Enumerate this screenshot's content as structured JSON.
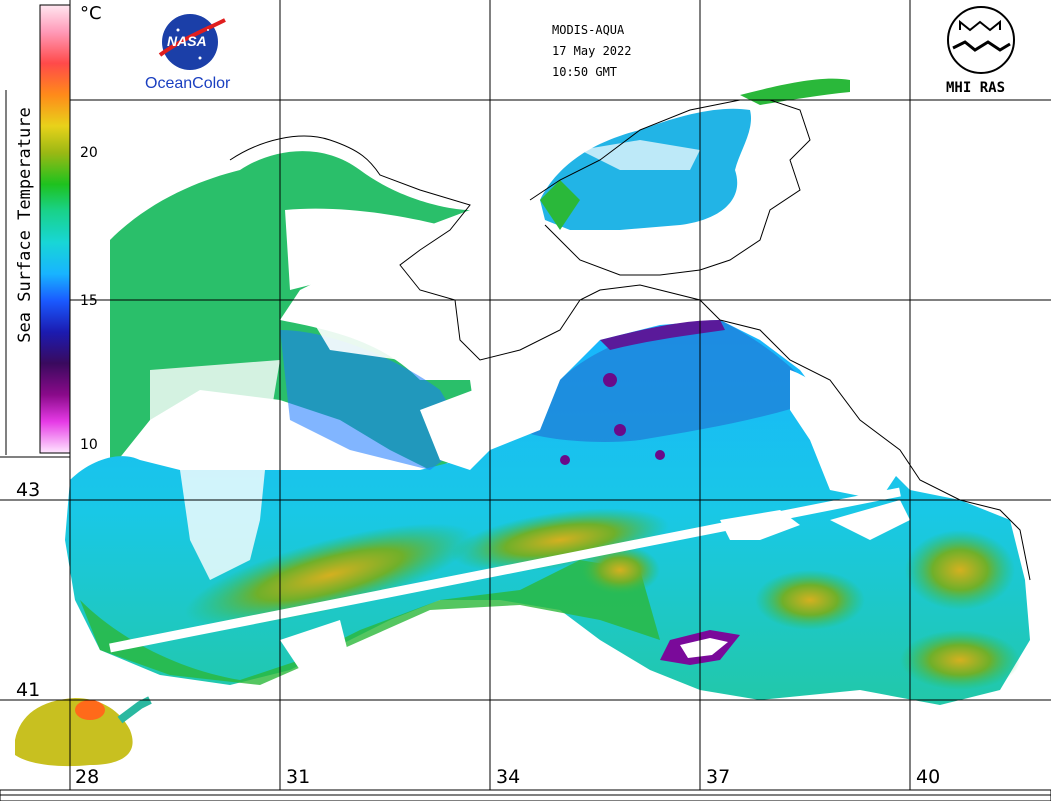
{
  "colorbar": {
    "unit": "°C",
    "title": "Sea Surface Temperature",
    "ticks": [
      "20",
      "15",
      "10"
    ],
    "gradient": [
      "#ffd6e8",
      "#ff9ab8",
      "#ff4a4a",
      "#ff7f1a",
      "#ffb31a",
      "#e6d21a",
      "#b8b814",
      "#3ca63c",
      "#1ec21e",
      "#19d28a",
      "#18d6d6",
      "#18b4ff",
      "#1a78ff",
      "#1f33ff",
      "#1b1bb0",
      "#3a0a6e",
      "#8a0a8a",
      "#d41ad4",
      "#ff66ff",
      "#ffd6ff"
    ]
  },
  "header": {
    "sensor": "MODIS-AQUA",
    "date": "17 May 2022",
    "time": "10:50 GMT"
  },
  "logos": {
    "nasa": "NASA",
    "oceancolor": "OceanColor",
    "mhi": "MHI RAS"
  },
  "grid": {
    "longitudes": [
      "28",
      "31",
      "34",
      "37",
      "40"
    ],
    "latitudes": [
      "43",
      "41"
    ]
  }
}
